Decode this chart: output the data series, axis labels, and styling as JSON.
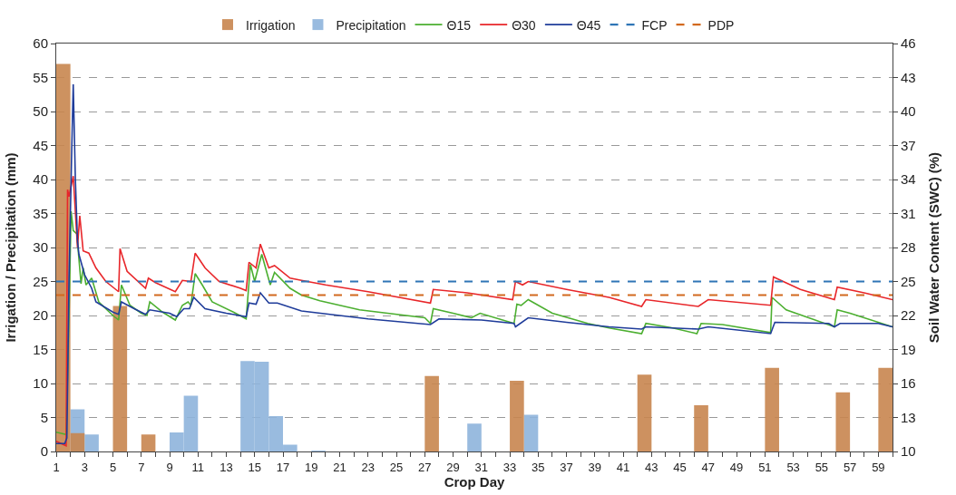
{
  "chart_data": {
    "type": "bar",
    "xlabel": "Crop Day",
    "ylabel": "Irrigation / Precipitation (mm)",
    "y2label": "Soil Water Content (SWC) (%)",
    "xlim": [
      1,
      60
    ],
    "xticks": [
      1,
      {
        "value": 2,
        "label": null
      },
      3,
      {
        "value": 4,
        "label": null
      },
      5,
      {
        "value": 6,
        "label": null
      },
      7,
      {
        "value": 8,
        "label": null
      },
      9,
      {
        "value": 10,
        "label": null
      },
      11,
      {
        "value": 12,
        "label": null
      },
      13,
      {
        "value": 14,
        "label": null
      },
      15,
      {
        "value": 16,
        "label": null
      },
      17,
      {
        "value": 18,
        "label": null
      },
      19,
      {
        "value": 20,
        "label": null
      },
      21,
      {
        "value": 22,
        "label": null
      },
      23,
      {
        "value": 24,
        "label": null
      },
      25,
      {
        "value": 26,
        "label": null
      },
      27,
      {
        "value": 28,
        "label": null
      },
      29,
      {
        "value": 30,
        "label": null
      },
      31,
      {
        "value": 32,
        "label": null
      },
      33,
      {
        "value": 34,
        "label": null
      },
      35,
      {
        "value": 36,
        "label": null
      },
      37,
      {
        "value": 38,
        "label": null
      },
      39,
      {
        "value": 40,
        "label": null
      },
      41,
      {
        "value": 42,
        "label": null
      },
      43,
      {
        "value": 44,
        "label": null
      },
      45,
      {
        "value": 46,
        "label": null
      },
      47,
      {
        "value": 48,
        "label": null
      },
      49,
      {
        "value": 50,
        "label": null
      },
      51,
      {
        "value": 52,
        "label": null
      },
      53,
      {
        "value": 54,
        "label": null
      },
      55,
      {
        "value": 56,
        "label": null
      },
      57,
      {
        "value": 58,
        "label": null
      },
      59,
      {
        "value": 60,
        "label": null
      }
    ],
    "ylim": [
      0,
      60
    ],
    "yticks": [
      0,
      5,
      10,
      15,
      20,
      25,
      30,
      35,
      40,
      45,
      50,
      55,
      60
    ],
    "y2lim": [
      10,
      46
    ],
    "y2ticks": [
      10,
      13,
      16,
      19,
      22,
      25,
      28,
      31,
      34,
      37,
      40,
      43,
      46
    ],
    "grid": "y",
    "legend": "top",
    "series": [
      {
        "name": "Irrigation",
        "color": "#c8864f",
        "x": [
          1.5,
          2.5,
          5.5,
          7.5,
          27.5,
          33.5,
          42.5,
          46.5,
          51.5,
          56.5,
          59.5
        ],
        "values": [
          57,
          2.7,
          21.4,
          2.5,
          11.1,
          10.4,
          11.3,
          6.8,
          12.3,
          8.7,
          12.3
        ]
      },
      {
        "name": "Precipitation",
        "color": "#8fb4dc",
        "x": [
          2.5,
          3.5,
          9.5,
          10.5,
          14.5,
          15.5,
          16.5,
          17.5,
          19.5,
          30.5,
          34.5
        ],
        "values": [
          6.2,
          2.5,
          2.8,
          8.2,
          13.3,
          13.2,
          5.2,
          1.0,
          0.1,
          4.1,
          5.4
        ]
      },
      {
        "name": "Θ15",
        "type": "line",
        "axis": "y2",
        "color": "#4caf30",
        "x": [
          1,
          1.7,
          1.9,
          2.05,
          2.2,
          2.45,
          2.75,
          2.9,
          3.1,
          3.5,
          4,
          5,
          5.4,
          5.6,
          6.2,
          7,
          7.4,
          7.6,
          8.5,
          9.4,
          9.9,
          10.3,
          10.5,
          10.8,
          11.3,
          12,
          13.5,
          14.4,
          14.7,
          15,
          15.5,
          16.1,
          16.4,
          17.5,
          18.3,
          19.6,
          22.4,
          27,
          27.4,
          27.6,
          29,
          30.3,
          30.9,
          33.3,
          33.5,
          33.8,
          34.3,
          36,
          38.5,
          40,
          42.3,
          42.6,
          44.5,
          46.2,
          46.5,
          48,
          51.4,
          51.5,
          52.5,
          55.9,
          56.1,
          57,
          60
        ],
        "values": [
          11.7,
          11.5,
          22.0,
          31.2,
          29.5,
          29.2,
          24.8,
          26.2,
          24.7,
          25.3,
          23.2,
          22.0,
          21.6,
          24.7,
          22.9,
          22.2,
          22.0,
          23.2,
          22.3,
          21.6,
          22.9,
          23.2,
          22.9,
          25.7,
          24.7,
          23.2,
          22.3,
          21.7,
          26.5,
          25.0,
          27.4,
          24.7,
          25.8,
          24.4,
          23.8,
          23.3,
          22.5,
          21.8,
          21.3,
          22.6,
          22.2,
          21.8,
          22.2,
          21.3,
          23.0,
          22.9,
          23.4,
          22.2,
          21.3,
          20.9,
          20.4,
          21.3,
          20.9,
          20.4,
          21.3,
          21.2,
          20.5,
          23.6,
          22.5,
          21.0,
          22.5,
          22.2,
          21.0
        ]
      },
      {
        "name": "Θ30",
        "type": "line",
        "axis": "y2",
        "color": "#e8262a",
        "x": [
          1,
          1.7,
          1.8,
          1.9,
          2.2,
          2.5,
          2.66,
          2.9,
          3.3,
          3.8,
          4.5,
          5.4,
          5.5,
          6,
          7.3,
          7.5,
          8,
          9.4,
          9.9,
          10.5,
          10.8,
          11.5,
          12.5,
          14,
          14.4,
          14.6,
          15.1,
          15.4,
          16,
          16.4,
          17.5,
          18.3,
          20,
          23,
          27.4,
          27.6,
          30,
          33.2,
          33.4,
          33.9,
          34.3,
          37,
          40,
          42.3,
          42.6,
          46.3,
          47,
          51.4,
          51.6,
          53.5,
          55.9,
          56.1,
          58,
          60
        ],
        "values": [
          10.9,
          10.5,
          33.1,
          32.5,
          34.3,
          28.0,
          30.8,
          27.7,
          27.5,
          26.2,
          25.0,
          24.1,
          27.9,
          25.9,
          24.4,
          25.3,
          24.9,
          24.1,
          25.1,
          25.0,
          27.5,
          26.2,
          25.0,
          24.4,
          24.2,
          26.7,
          26.2,
          28.3,
          26.2,
          26.4,
          25.3,
          25.1,
          24.7,
          24.1,
          23.1,
          24.3,
          24.0,
          23.4,
          25.0,
          24.7,
          25.0,
          24.3,
          23.6,
          22.8,
          23.4,
          22.8,
          23.4,
          22.9,
          25.4,
          24.3,
          23.4,
          24.5,
          24.0,
          23.4
        ]
      },
      {
        "name": "Θ45",
        "type": "line",
        "axis": "y2",
        "color": "#1f3c9a",
        "x": [
          1,
          1.6,
          1.75,
          1.9,
          2.1,
          2.2,
          2.35,
          2.5,
          2.6,
          3,
          3.5,
          3.8,
          5,
          5.4,
          5.6,
          6.5,
          7.3,
          7.6,
          9,
          9.5,
          10,
          10.4,
          10.7,
          11.5,
          13,
          14.4,
          14.6,
          15.1,
          15.4,
          16,
          16.6,
          18.3,
          23,
          27.4,
          28,
          31,
          33.3,
          33.4,
          34.3,
          37,
          40,
          42.3,
          42.6,
          46.3,
          47,
          51.4,
          51.7,
          55.5,
          55.9,
          56.3,
          59,
          60
        ],
        "values": [
          10.7,
          10.7,
          11.2,
          25.0,
          37.0,
          42.4,
          34.0,
          28.6,
          27.4,
          25.6,
          24.4,
          23.2,
          22.3,
          22.1,
          23.2,
          22.6,
          22.1,
          22.5,
          22.2,
          21.9,
          22.6,
          22.6,
          23.6,
          22.6,
          22.2,
          21.9,
          23.1,
          23.0,
          24.0,
          23.1,
          23.1,
          22.4,
          21.7,
          21.2,
          21.7,
          21.6,
          21.3,
          21.0,
          21.8,
          21.4,
          21.0,
          20.8,
          21.0,
          20.8,
          21.0,
          20.4,
          21.4,
          21.3,
          21.0,
          21.3,
          21.3,
          21.0
        ]
      }
    ],
    "ref_lines": [
      {
        "axis": "y2",
        "value": 25,
        "label": "FCP",
        "color": "#2e75b6",
        "line_style": "dashed"
      },
      {
        "axis": "y2",
        "value": 23.8,
        "label": "PDP",
        "color": "#d2691e",
        "line_style": "dashed"
      }
    ]
  }
}
